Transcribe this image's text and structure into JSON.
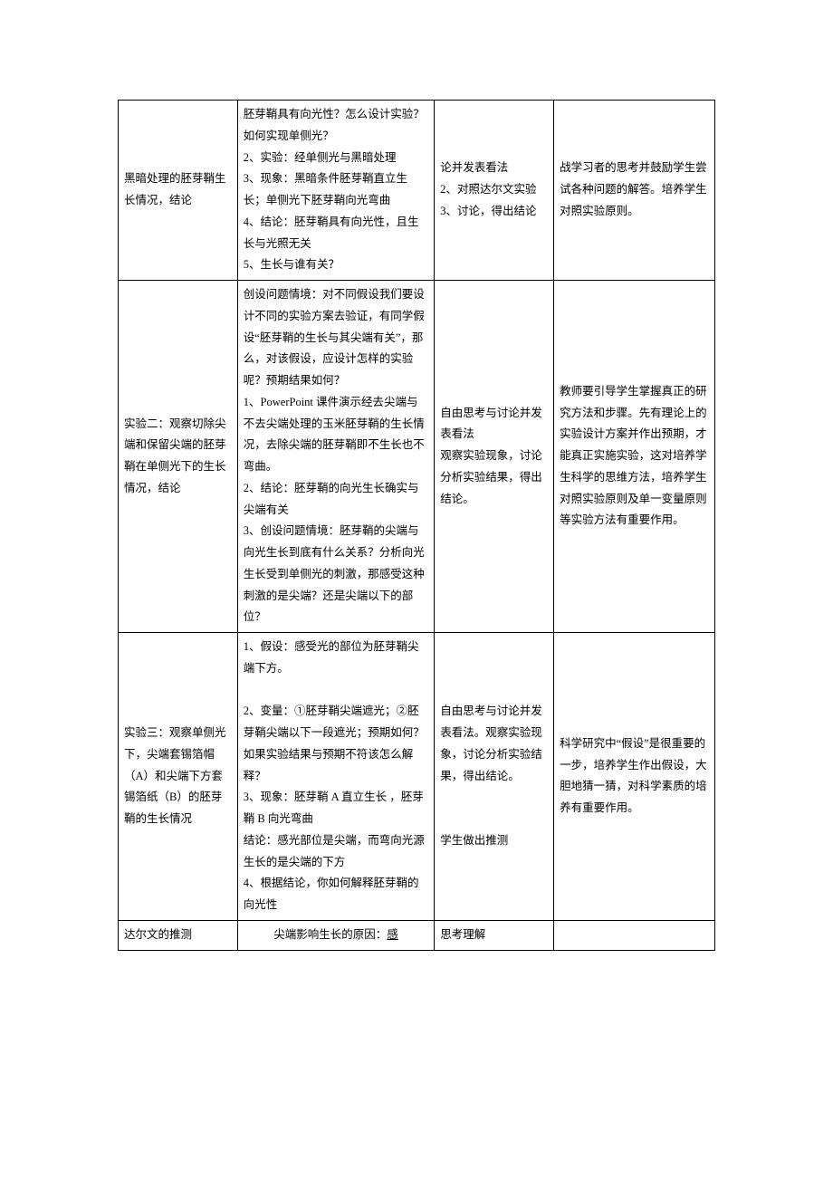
{
  "table": {
    "row1": {
      "c1": "黑暗处理的胚芽鞘生长情况，结论",
      "c2": "胚芽鞘具有向光性？怎么设计实验？如何实现单侧光？\n2、实验：经单侧光与黑暗处理\n3、现象：黑暗条件胚芽鞘直立生长；单侧光下胚芽鞘向光弯曲\n4、结论：胚芽鞘具有向光性，且生长与光照无关\n5、生长与谁有关？",
      "c3": "论并发表看法\n2、对照达尔文实验\n3、讨论，得出结论",
      "c4": "战学习者的思考并鼓励学生尝试各种问题的解答。培养学生对照实验原则。"
    },
    "row2": {
      "c1": "实验二：观察切除尖端和保留尖端的胚芽鞘在单侧光下的生长情况，结论",
      "c2": "创设问题情境：对不同假设我们要设计不同的实验方案去验证，有同学假设“胚芽鞘的生长与其尖端有关”，那么，对该假设，应设计怎样的实验呢？预期结果如何？\n1、PowerPoint 课件演示经去尖端与不去尖端处理的玉米胚芽鞘的生长情况，去除尖端的胚芽鞘即不生长也不弯曲。\n2、结论：胚芽鞘的向光生长确实与尖端有关\n3、创设问题情境：胚芽鞘的尖端与向光生长到底有什么关系？分析向光生长受到单侧光的刺激，那感受这种刺激的是尖端？还是尖端以下的部位？",
      "c3": "自由思考与讨论并发表看法\n观察实验现象，讨论分析实验结果，得出结论。",
      "c4": "教师要引导学生掌握真正的研究方法和步骤。先有理论上的实验设计方案并作出预期，才能真正实施实验，这对培养学生科学的思维方法，培养学生对照实验原则及单一变量原则等实验方法有重要作用。"
    },
    "row3": {
      "c1": "实验三：观察单侧光下，尖端套锡箔帽（A）和尖端下方套锡箔纸（B）的胚芽鞘的生长情况",
      "c2": "1、假设：感受光的部位为胚芽鞘尖端下方。\n\n2、变量：①胚芽鞘尖端遮光；②胚芽鞘尖端以下一段遮光；预期如何？\n如果实验结果与预期不符该怎么解释？\n3、现象：胚芽鞘 A 直立生长 ，胚芽鞘 B 向光弯曲\n结论：感光部位是尖端，而弯向光源生长的是尖端的下方\n4、根据结论，你如何解释胚芽鞘的向光性",
      "c3": "自由思考与讨论并发表看法。观察实验现象，讨论分析实验结果，得出结论。\n\n\n学生做出推测",
      "c4": "科学研究中“假设”是很重要的一步，培养学生作出假设，大胆地猜一猜，对科学素质的培养有重要作用。"
    },
    "row4": {
      "c1": "达尔文的推测",
      "c2a": "尖端影响生长的原因：",
      "c2b": "感",
      "c3": "思考理解",
      "c4": ""
    }
  }
}
